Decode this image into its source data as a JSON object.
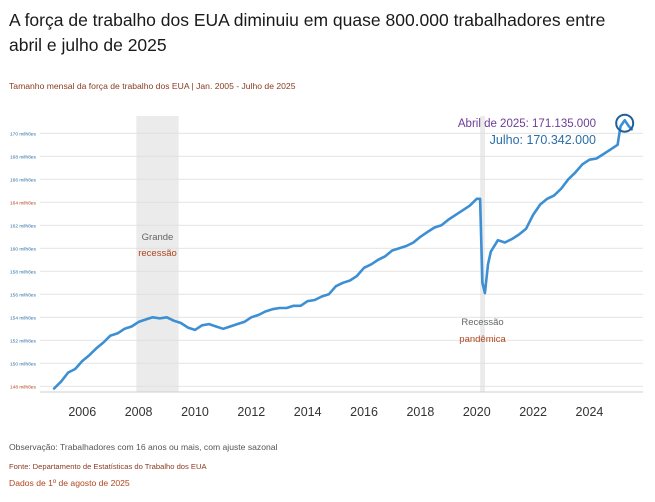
{
  "title": "A força de trabalho dos EUA diminuiu em quase 800.000 trabalhadores entre abril e julho de 2025",
  "subtitle": "Tamanho mensal da força de trabalho dos EUA | Jan. 2005 - Julho de 2025",
  "note": "Observação: Trabalhadores com 16 anos ou mais, com ajuste sazonal",
  "source": "Fonte: Departamento de Estatísticas do Trabalho dos EUA",
  "data_date": "Dados de 1º de agosto de 2025",
  "colors": {
    "line": "#3d8fd4",
    "shade": "#ebebeb",
    "grid": "#dcdcdc",
    "april": "#6b3d96",
    "july": "#2a6ea8",
    "recession_label": "#b0451d"
  },
  "chart_data": {
    "type": "line",
    "ylim": [
      147.5,
      171.5
    ],
    "xlim": [
      2004.5,
      2025.9
    ],
    "y_ticks": [
      {
        "value": 148,
        "label": "148 milhões"
      },
      {
        "value": 150,
        "label": "150 milhões"
      },
      {
        "value": 152,
        "label": "152 milhões"
      },
      {
        "value": 154,
        "label": "154 milhões"
      },
      {
        "value": 156,
        "label": "156 milhões"
      },
      {
        "value": 158,
        "label": "158 milhões"
      },
      {
        "value": 160,
        "label": "160 milhões"
      },
      {
        "value": 162,
        "label": "162 milhões"
      },
      {
        "value": 164,
        "label": "164 milhões"
      },
      {
        "value": 166,
        "label": "166 milhões"
      },
      {
        "value": 168,
        "label": "168 milhões"
      },
      {
        "value": 170,
        "label": "170 milhões"
      }
    ],
    "x_ticks": [
      "2006",
      "2008",
      "2010",
      "2012",
      "2014",
      "2016",
      "2018",
      "2020",
      "2022",
      "2024"
    ],
    "recessions": [
      {
        "start": 2007.92,
        "end": 2009.42,
        "label_line1": "Grande",
        "label_line2": "recessão"
      },
      {
        "start": 2020.12,
        "end": 2020.29,
        "label_line1": "Recessão",
        "label_line2": "pandêmica"
      }
    ],
    "annotations": {
      "april": "Abril de 2025: 171.135.000",
      "july": "Julho: 170.342.000"
    },
    "series": [
      {
        "x": [
          2005.0,
          2005.25,
          2005.5,
          2005.75,
          2006.0,
          2006.25,
          2006.5,
          2006.75,
          2007.0,
          2007.25,
          2007.5,
          2007.75,
          2008.0,
          2008.25,
          2008.5,
          2008.75,
          2009.0,
          2009.25,
          2009.5,
          2009.75,
          2010.0,
          2010.25,
          2010.5,
          2010.75,
          2011.0,
          2011.25,
          2011.5,
          2011.75,
          2012.0,
          2012.25,
          2012.5,
          2012.75,
          2013.0,
          2013.25,
          2013.5,
          2013.75,
          2014.0,
          2014.25,
          2014.5,
          2014.75,
          2015.0,
          2015.25,
          2015.5,
          2015.75,
          2016.0,
          2016.25,
          2016.5,
          2016.75,
          2017.0,
          2017.25,
          2017.5,
          2017.75,
          2018.0,
          2018.25,
          2018.5,
          2018.75,
          2019.0,
          2019.25,
          2019.5,
          2019.75,
          2020.0,
          2020.12,
          2020.2,
          2020.29,
          2020.4,
          2020.5,
          2020.75,
          2021.0,
          2021.25,
          2021.5,
          2021.75,
          2022.0,
          2022.25,
          2022.5,
          2022.75,
          2023.0,
          2023.25,
          2023.5,
          2023.75,
          2024.0,
          2024.25,
          2024.5,
          2024.75,
          2025.0,
          2025.1,
          2025.25,
          2025.4,
          2025.5
        ],
        "values": [
          147.8,
          148.4,
          149.2,
          149.5,
          150.2,
          150.7,
          151.3,
          151.8,
          152.4,
          152.6,
          153.0,
          153.2,
          153.6,
          153.8,
          154.0,
          153.9,
          154.0,
          153.7,
          153.5,
          153.1,
          152.9,
          153.3,
          153.4,
          153.2,
          153.0,
          153.2,
          153.4,
          153.6,
          154.0,
          154.2,
          154.5,
          154.7,
          154.8,
          154.8,
          155.0,
          155.0,
          155.4,
          155.5,
          155.8,
          156.0,
          156.7,
          157.0,
          157.2,
          157.6,
          158.3,
          158.6,
          159.0,
          159.3,
          159.8,
          160.0,
          160.2,
          160.5,
          161.0,
          161.4,
          161.8,
          162.0,
          162.5,
          162.9,
          163.3,
          163.7,
          164.3,
          164.3,
          157.0,
          156.1,
          158.6,
          159.7,
          160.7,
          160.5,
          160.8,
          161.2,
          161.7,
          162.9,
          163.8,
          164.3,
          164.6,
          165.2,
          166.0,
          166.6,
          167.3,
          167.7,
          167.8,
          168.2,
          168.6,
          169.0,
          170.6,
          171.135,
          170.6,
          170.342
        ]
      }
    ]
  }
}
